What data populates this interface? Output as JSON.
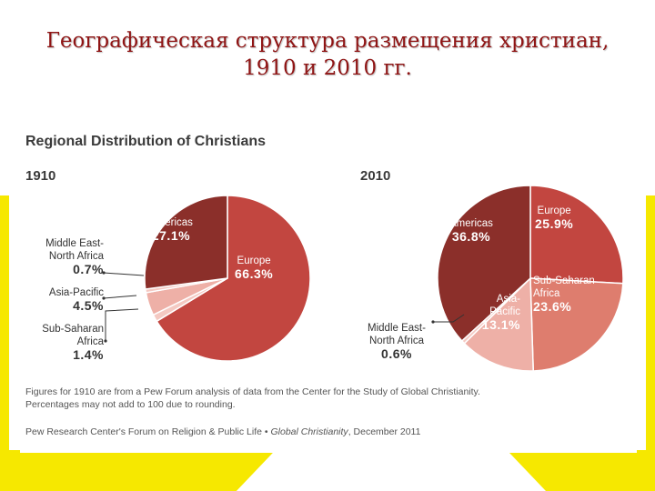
{
  "slide": {
    "title_line1": "Географическая структура размещения христиан,",
    "title_line2": "1910 и 2010 гг."
  },
  "colors": {
    "background_stripes": "#f6e800",
    "americas": "#8b2f2a",
    "europe": "#c24640",
    "sub_saharan_2010": "#de7d6e",
    "asia_pacific": "#eeb0a7",
    "small_slices": "#f4c9c2"
  },
  "chart_data": [
    {
      "type": "pie",
      "title": "Regional Distribution of Christians",
      "year": "1910",
      "slices": [
        {
          "name": "Europe",
          "value": 66.3,
          "value_label": "66.3%"
        },
        {
          "name": "Sub-Saharan Africa",
          "value": 1.4,
          "value_label": "1.4%"
        },
        {
          "name": "Asia-Pacific",
          "value": 4.5,
          "value_label": "4.5%"
        },
        {
          "name": "Middle East-North Africa",
          "value": 0.7,
          "value_label": "0.7%"
        },
        {
          "name": "Americas",
          "value": 27.1,
          "value_label": "27.1%"
        }
      ]
    },
    {
      "type": "pie",
      "title": "Regional Distribution of Christians",
      "year": "2010",
      "slices": [
        {
          "name": "Europe",
          "value": 25.9,
          "value_label": "25.9%"
        },
        {
          "name": "Sub-Saharan Africa",
          "value": 23.6,
          "value_label": "23.6%"
        },
        {
          "name": "Asia-Pacific",
          "value": 13.1,
          "value_label": "13.1%"
        },
        {
          "name": "Middle East-North Africa",
          "value": 0.6,
          "value_label": "0.6%"
        },
        {
          "name": "Americas",
          "value": 36.8,
          "value_label": "36.8%"
        }
      ]
    }
  ],
  "labels": {
    "y1910": {
      "americas": "Americas",
      "europe": "Europe",
      "mena": "Middle East-\nNorth Africa",
      "asia": "Asia-Pacific",
      "ssa": "Sub-Saharan\nAfrica"
    },
    "y2010": {
      "americas": "Americas",
      "europe": "Europe",
      "ssa": "Sub-Saharan\nAfrica",
      "asia": "Asia-\nPacific",
      "mena": "Middle East-\nNorth Africa"
    }
  },
  "footnote": "Figures for 1910 are from a Pew Forum analysis of data from the Center for the Study of Global Christianity.\nPercentages may not add to 100 due to rounding.",
  "source": {
    "org": "Pew Research Center's Forum on Religion & Public Life •",
    "report": "Global Christianity",
    "date": ", December 2011"
  }
}
